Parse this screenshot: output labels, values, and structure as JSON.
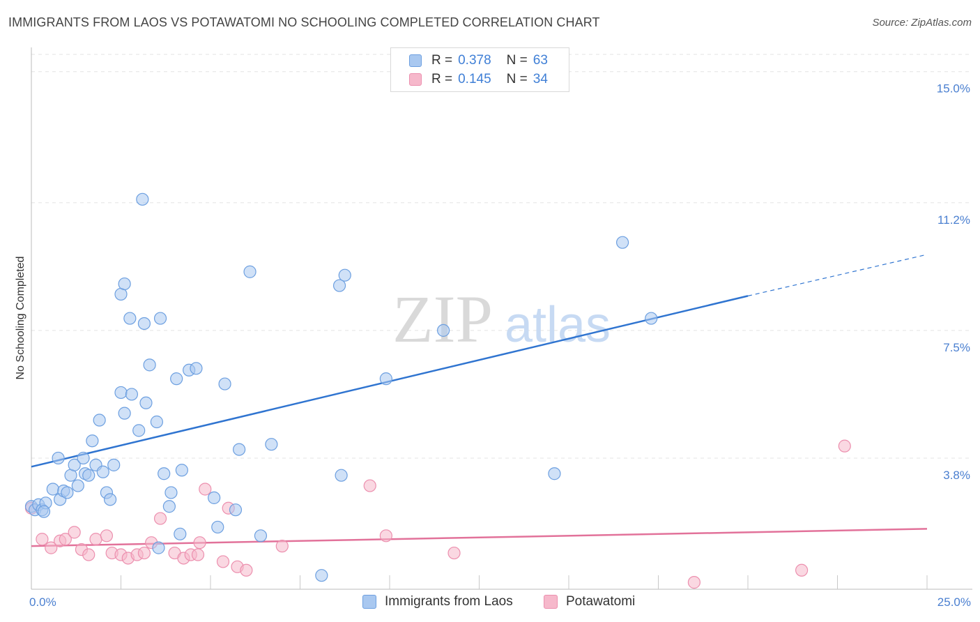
{
  "header": {
    "title": "IMMIGRANTS FROM LAOS VS POTAWATOMI NO SCHOOLING COMPLETED CORRELATION CHART",
    "source": "Source: ZipAtlas.com"
  },
  "watermark": {
    "zip": "ZIP",
    "atlas": "atlas"
  },
  "legend": {
    "rows": [
      {
        "r_label": "R =",
        "r_value": "0.378",
        "n_label": "N =",
        "n_value": "63"
      },
      {
        "r_label": "R =",
        "r_value": "0.145",
        "n_label": "N =",
        "n_value": "34"
      }
    ]
  },
  "bottom_legend": {
    "series1": "Immigrants from Laos",
    "series2": "Potawatomi"
  },
  "colors": {
    "series1_fill": "#a9c8f0",
    "series1_stroke": "#6c9fe0",
    "series1_line": "#2f74d0",
    "series2_fill": "#f6b8cb",
    "series2_stroke": "#ec8fae",
    "series2_line": "#e2729a",
    "tick": "#4a7fd0",
    "grid": "#e3e3e3"
  },
  "chart_data": {
    "type": "scatter",
    "title": "IMMIGRANTS FROM LAOS VS POTAWATOMI NO SCHOOLING COMPLETED CORRELATION CHART",
    "xlabel": "",
    "ylabel": "No Schooling Completed",
    "xlim": [
      0,
      25
    ],
    "ylim": [
      0,
      15.5
    ],
    "x_tick_labels": [
      {
        "value": 0,
        "label": "0.0%"
      },
      {
        "value": 25,
        "label": "25.0%"
      }
    ],
    "y_tick_labels": [
      {
        "value": 3.8,
        "label": "3.8%"
      },
      {
        "value": 7.5,
        "label": "7.5%"
      },
      {
        "value": 11.2,
        "label": "11.2%"
      },
      {
        "value": 15.0,
        "label": "15.0%"
      }
    ],
    "x_minor_ticks": [
      2.5,
      5,
      7.5,
      10,
      12.5,
      15,
      17.5,
      20,
      22.5,
      25
    ],
    "grid": true,
    "legend_position": "top-center",
    "series": [
      {
        "name": "Immigrants from Laos",
        "R": 0.378,
        "N": 63,
        "trend": {
          "x0": 0,
          "y0": 3.55,
          "x1": 20,
          "y1": 8.5,
          "dash_to_x": 25,
          "dash_to_y": 9.7
        },
        "points": [
          [
            0.0,
            2.4
          ],
          [
            0.1,
            2.3
          ],
          [
            0.2,
            2.45
          ],
          [
            0.3,
            2.3
          ],
          [
            0.4,
            2.5
          ],
          [
            0.6,
            2.9
          ],
          [
            0.8,
            2.6
          ],
          [
            0.9,
            2.85
          ],
          [
            1.0,
            2.8
          ],
          [
            1.3,
            3.0
          ],
          [
            1.1,
            3.3
          ],
          [
            1.2,
            3.6
          ],
          [
            1.5,
            3.35
          ],
          [
            1.6,
            3.3
          ],
          [
            1.8,
            3.6
          ],
          [
            2.0,
            3.4
          ],
          [
            2.1,
            2.8
          ],
          [
            2.2,
            2.6
          ],
          [
            2.3,
            3.6
          ],
          [
            0.75,
            3.8
          ],
          [
            1.45,
            3.8
          ],
          [
            1.7,
            4.3
          ],
          [
            1.9,
            4.9
          ],
          [
            2.5,
            5.7
          ],
          [
            2.6,
            5.1
          ],
          [
            2.8,
            5.65
          ],
          [
            3.0,
            4.6
          ],
          [
            3.2,
            5.4
          ],
          [
            3.5,
            4.85
          ],
          [
            3.3,
            6.5
          ],
          [
            2.5,
            8.55
          ],
          [
            2.6,
            8.85
          ],
          [
            2.75,
            7.85
          ],
          [
            3.15,
            7.7
          ],
          [
            3.6,
            7.85
          ],
          [
            3.1,
            11.3
          ],
          [
            3.7,
            3.35
          ],
          [
            3.9,
            2.8
          ],
          [
            3.85,
            2.4
          ],
          [
            4.2,
            3.45
          ],
          [
            4.15,
            1.6
          ],
          [
            4.05,
            6.1
          ],
          [
            4.4,
            6.35
          ],
          [
            4.6,
            6.4
          ],
          [
            5.1,
            2.65
          ],
          [
            5.2,
            1.8
          ],
          [
            5.4,
            5.95
          ],
          [
            5.7,
            2.3
          ],
          [
            5.8,
            4.05
          ],
          [
            6.1,
            9.2
          ],
          [
            6.4,
            1.55
          ],
          [
            6.7,
            4.2
          ],
          [
            8.1,
            0.4
          ],
          [
            8.6,
            8.8
          ],
          [
            8.75,
            9.1
          ],
          [
            8.65,
            3.3
          ],
          [
            9.9,
            6.1
          ],
          [
            11.5,
            7.5
          ],
          [
            14.6,
            3.35
          ],
          [
            16.5,
            10.05
          ],
          [
            17.3,
            7.85
          ],
          [
            3.55,
            1.2
          ],
          [
            0.35,
            2.25
          ]
        ]
      },
      {
        "name": "Potawatomi",
        "R": 0.145,
        "N": 34,
        "trend": {
          "x0": 0,
          "y0": 1.25,
          "x1": 25,
          "y1": 1.75
        },
        "points": [
          [
            0.0,
            2.35
          ],
          [
            0.3,
            1.45
          ],
          [
            0.55,
            1.2
          ],
          [
            0.8,
            1.4
          ],
          [
            0.95,
            1.45
          ],
          [
            1.2,
            1.65
          ],
          [
            1.4,
            1.15
          ],
          [
            1.6,
            1.0
          ],
          [
            1.8,
            1.45
          ],
          [
            2.1,
            1.55
          ],
          [
            2.25,
            1.05
          ],
          [
            2.5,
            1.0
          ],
          [
            2.7,
            0.9
          ],
          [
            2.95,
            1.0
          ],
          [
            3.35,
            1.35
          ],
          [
            3.6,
            2.05
          ],
          [
            4.0,
            1.05
          ],
          [
            4.25,
            0.9
          ],
          [
            4.45,
            1.0
          ],
          [
            4.7,
            1.35
          ],
          [
            4.85,
            2.9
          ],
          [
            4.65,
            1.0
          ],
          [
            5.35,
            0.8
          ],
          [
            5.5,
            2.35
          ],
          [
            5.75,
            0.65
          ],
          [
            6.0,
            0.55
          ],
          [
            7.0,
            1.25
          ],
          [
            9.45,
            3.0
          ],
          [
            9.9,
            1.55
          ],
          [
            11.8,
            1.05
          ],
          [
            18.5,
            0.2
          ],
          [
            21.5,
            0.55
          ],
          [
            22.7,
            4.15
          ],
          [
            3.15,
            1.05
          ]
        ]
      }
    ]
  }
}
